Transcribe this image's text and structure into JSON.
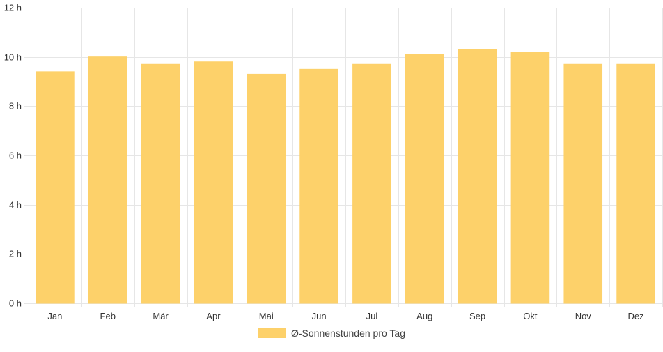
{
  "chart_data": {
    "type": "bar",
    "categories": [
      "Jan",
      "Feb",
      "Mär",
      "Apr",
      "Mai",
      "Jun",
      "Jul",
      "Aug",
      "Sep",
      "Okt",
      "Nov",
      "Dez"
    ],
    "series": [
      {
        "name": "Ø-Sonnenstunden pro Tag",
        "values": [
          9.4,
          10.0,
          9.7,
          9.8,
          9.3,
          9.5,
          9.7,
          10.1,
          10.3,
          10.2,
          9.7,
          9.7
        ],
        "color": "#fdd16a"
      }
    ],
    "y_ticks": [
      "0 h",
      "2 h",
      "4 h",
      "6 h",
      "8 h",
      "10 h",
      "12 h"
    ],
    "ylim": [
      0,
      12
    ],
    "y_step": 2,
    "grid": true,
    "legend_position": "bottom",
    "gridline_color": "#e6e6e6"
  }
}
